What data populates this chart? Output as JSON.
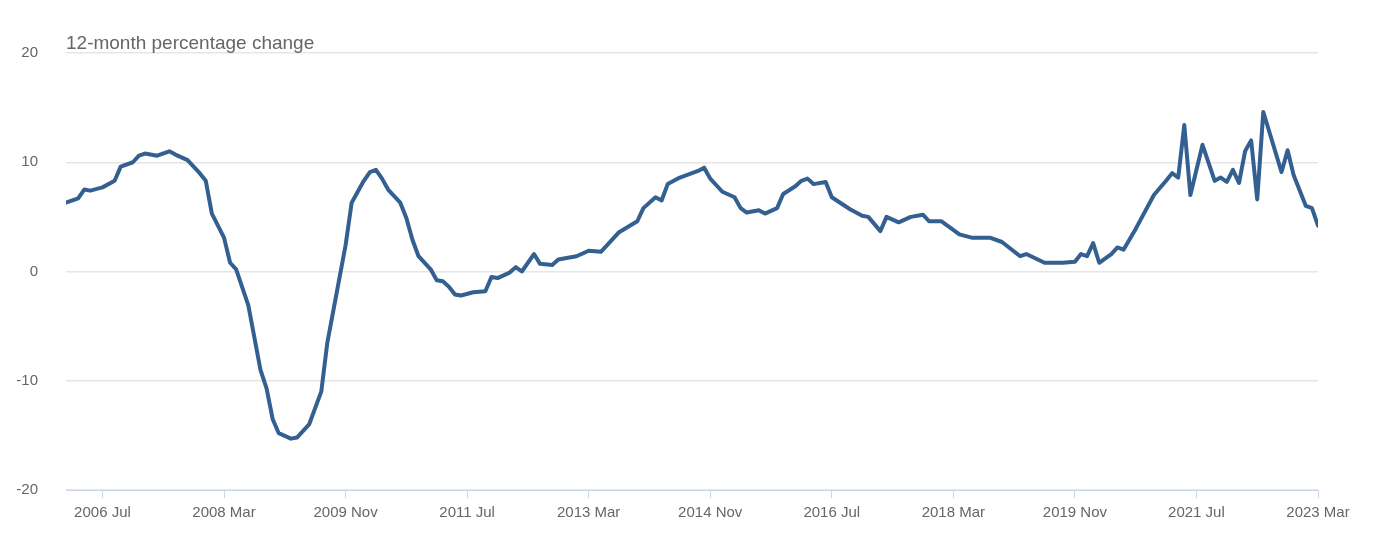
{
  "chart_data": {
    "type": "line",
    "ylabel": "12-month percentage change",
    "xlim": [
      "2006-01",
      "2023-03"
    ],
    "ylim": [
      -20,
      20
    ],
    "yticks": [
      -20,
      -10,
      0,
      10,
      20
    ],
    "xticks": [
      {
        "value": "2006-07",
        "label": "2006 Jul"
      },
      {
        "value": "2008-03",
        "label": "2008 Mar"
      },
      {
        "value": "2009-11",
        "label": "2009 Nov"
      },
      {
        "value": "2011-07",
        "label": "2011 Jul"
      },
      {
        "value": "2013-03",
        "label": "2013 Mar"
      },
      {
        "value": "2014-11",
        "label": "2014 Nov"
      },
      {
        "value": "2016-07",
        "label": "2016 Jul"
      },
      {
        "value": "2018-03",
        "label": "2018 Mar"
      },
      {
        "value": "2019-11",
        "label": "2019 Nov"
      },
      {
        "value": "2021-07",
        "label": "2021 Jul"
      },
      {
        "value": "2023-03",
        "label": "2023 Mar"
      }
    ],
    "grid": "y",
    "legend": false,
    "marker": "none",
    "line_style": "solid",
    "series": [
      {
        "color": "#335f91",
        "x": [
          "2006-01",
          "2006-03",
          "2006-04",
          "2006-05",
          "2006-07",
          "2006-09",
          "2006-10",
          "2006-12",
          "2007-01",
          "2007-02",
          "2007-04",
          "2007-06",
          "2007-07",
          "2007-09",
          "2007-11",
          "2007-12",
          "2008-01",
          "2008-03",
          "2008-04",
          "2008-05",
          "2008-07",
          "2008-09",
          "2008-10",
          "2008-11",
          "2008-12",
          "2009-02",
          "2009-03",
          "2009-05",
          "2009-07",
          "2009-08",
          "2009-11",
          "2009-12",
          "2010-02",
          "2010-03",
          "2010-04",
          "2010-05",
          "2010-06",
          "2010-08",
          "2010-09",
          "2010-10",
          "2010-11",
          "2011-01",
          "2011-02",
          "2011-03",
          "2011-04",
          "2011-05",
          "2011-06",
          "2011-08",
          "2011-10",
          "2011-11",
          "2011-12",
          "2012-02",
          "2012-03",
          "2012-04",
          "2012-06",
          "2012-07",
          "2012-09",
          "2012-10",
          "2013-01",
          "2013-03",
          "2013-05",
          "2013-06",
          "2013-08",
          "2013-11",
          "2013-12",
          "2014-02",
          "2014-03",
          "2014-04",
          "2014-06",
          "2014-09",
          "2014-10",
          "2014-11",
          "2015-01",
          "2015-03",
          "2015-04",
          "2015-05",
          "2015-07",
          "2015-08",
          "2015-10",
          "2015-11",
          "2016-01",
          "2016-02",
          "2016-03",
          "2016-04",
          "2016-06",
          "2016-07",
          "2016-10",
          "2016-12",
          "2017-01",
          "2017-03",
          "2017-04",
          "2017-06",
          "2017-08",
          "2017-10",
          "2017-11",
          "2018-01",
          "2018-04",
          "2018-06",
          "2018-09",
          "2018-11",
          "2019-02",
          "2019-03",
          "2019-06",
          "2019-09",
          "2019-11",
          "2019-12",
          "2020-01",
          "2020-02",
          "2020-03",
          "2020-05",
          "2020-06",
          "2020-07",
          "2020-09",
          "2020-12",
          "2021-02",
          "2021-03",
          "2021-04",
          "2021-05",
          "2021-06",
          "2021-08",
          "2021-10",
          "2021-11",
          "2021-12",
          "2022-01",
          "2022-02",
          "2022-03",
          "2022-04",
          "2022-05",
          "2022-06",
          "2022-09",
          "2022-10",
          "2022-11",
          "2023-01",
          "2023-02",
          "2023-03"
        ],
        "values": [
          6.3,
          6.7,
          7.5,
          7.4,
          7.7,
          8.3,
          9.6,
          10.0,
          10.6,
          10.8,
          10.6,
          11.0,
          10.7,
          10.2,
          9.0,
          8.3,
          5.3,
          3.1,
          0.8,
          0.2,
          -3.1,
          -9.0,
          -10.7,
          -13.5,
          -14.8,
          -15.3,
          -15.2,
          -14.0,
          -11.0,
          -6.5,
          2.4,
          6.3,
          8.3,
          9.1,
          9.3,
          8.5,
          7.5,
          6.3,
          4.9,
          2.9,
          1.4,
          0.2,
          -0.8,
          -0.9,
          -1.4,
          -2.1,
          -2.2,
          -1.9,
          -1.8,
          -0.5,
          -0.6,
          -0.1,
          0.4,
          0.0,
          1.6,
          0.7,
          0.6,
          1.1,
          1.4,
          1.9,
          1.8,
          2.4,
          3.6,
          4.6,
          5.8,
          6.8,
          6.5,
          8.0,
          8.6,
          9.2,
          9.5,
          8.5,
          7.3,
          6.8,
          5.8,
          5.4,
          5.6,
          5.3,
          5.8,
          7.1,
          7.8,
          8.3,
          8.5,
          8.0,
          8.2,
          6.8,
          5.7,
          5.1,
          5.0,
          3.7,
          5.0,
          4.5,
          5.0,
          5.2,
          4.6,
          4.6,
          3.4,
          3.1,
          3.1,
          2.7,
          1.4,
          1.6,
          0.8,
          0.8,
          0.9,
          1.6,
          1.4,
          2.6,
          0.8,
          1.6,
          2.2,
          2.0,
          3.9,
          7.0,
          8.3,
          9.0,
          8.6,
          13.4,
          7.0,
          11.6,
          8.3,
          8.6,
          8.2,
          9.3,
          8.1,
          11.0,
          12.0,
          6.6,
          14.6,
          9.1,
          11.1,
          8.8,
          6.0,
          5.8,
          4.2
        ]
      }
    ]
  }
}
